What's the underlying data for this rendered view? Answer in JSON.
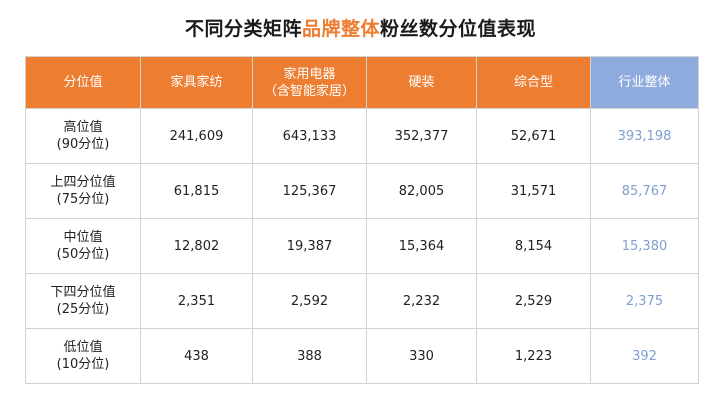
{
  "title": {
    "prefix": "不同分类矩阵",
    "highlight": "品牌整体",
    "suffix": "粉丝数分位值表现"
  },
  "table": {
    "headers": [
      [
        "分位值"
      ],
      [
        "家具家纺"
      ],
      [
        "家用电器",
        "（含智能家居）"
      ],
      [
        "硬装"
      ],
      [
        "综合型"
      ],
      [
        "行业整体"
      ]
    ],
    "rows": [
      {
        "label": [
          "高位值",
          "(90分位)"
        ],
        "values": [
          "241,609",
          "643,133",
          "352,377",
          "52,671",
          "393,198"
        ]
      },
      {
        "label": [
          "上四分位值",
          "(75分位)"
        ],
        "values": [
          "61,815",
          "125,367",
          "82,005",
          "31,571",
          "85,767"
        ]
      },
      {
        "label": [
          "中位值",
          "(50分位)"
        ],
        "values": [
          "12,802",
          "19,387",
          "15,364",
          "8,154",
          "15,380"
        ]
      },
      {
        "label": [
          "下四分位值",
          "(25分位)"
        ],
        "values": [
          "2,351",
          "2,592",
          "2,232",
          "2,529",
          "2,375"
        ]
      },
      {
        "label": [
          "低位值",
          "(10分位)"
        ],
        "values": [
          "438",
          "388",
          "330",
          "1,223",
          "392"
        ]
      }
    ]
  },
  "colors": {
    "accent_orange": "#ED7D31",
    "overall_blue": "#8FAADC",
    "overall_text": "#7F9FCE"
  }
}
